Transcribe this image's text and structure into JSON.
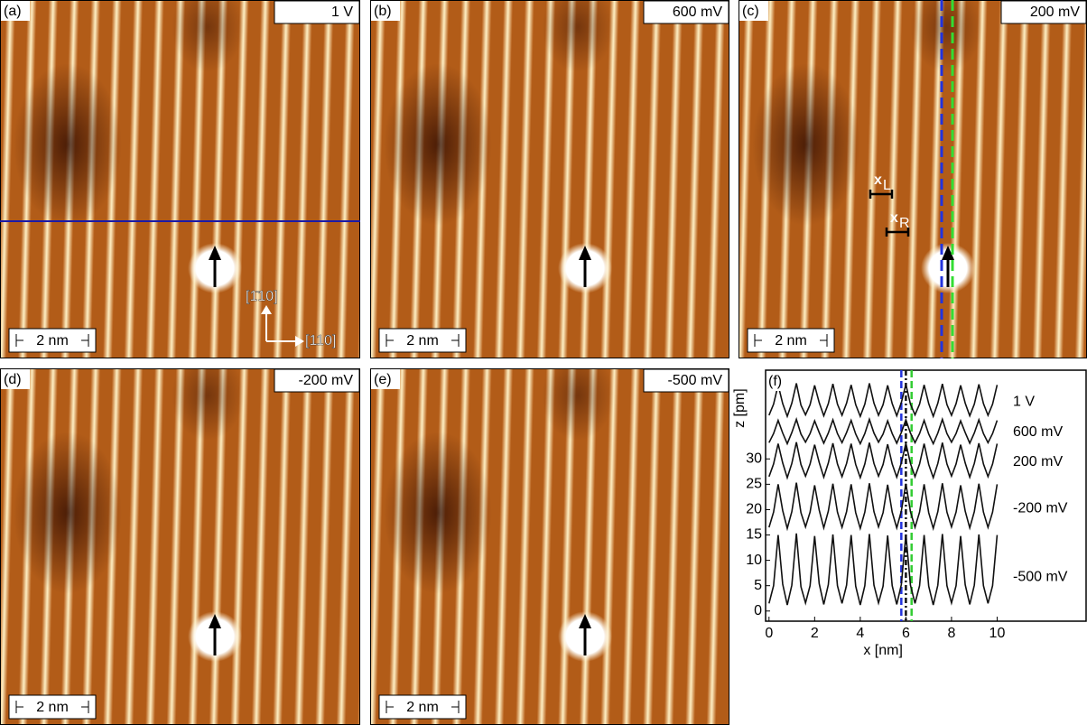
{
  "panels": [
    {
      "label": "(a)",
      "voltage": "1 V",
      "scale_bar": "2 nm"
    },
    {
      "label": "(b)",
      "voltage": "600 mV",
      "scale_bar": "2 nm"
    },
    {
      "label": "(c)",
      "voltage": "200 mV",
      "scale_bar": "2 nm"
    },
    {
      "label": "(d)",
      "voltage": "-200 mV",
      "scale_bar": "2 nm"
    },
    {
      "label": "(e)",
      "voltage": "-500 mV",
      "scale_bar": "2 nm"
    }
  ],
  "orientation": {
    "vertical": "[1̄10]",
    "horizontal": "[110]"
  },
  "markers": [
    {
      "symbol": "x",
      "subscript": "L"
    },
    {
      "symbol": "x",
      "subscript": "R"
    }
  ],
  "chart_data": {
    "type": "line",
    "panel_label": "(f)",
    "x_label": "x [nm]",
    "y_label": "z [pm]",
    "xlim": [
      -0.15,
      13.9
    ],
    "ylim": [
      -2,
      47.5
    ],
    "xticks": [
      0,
      2,
      4,
      6,
      8,
      10
    ],
    "yticks": [
      0,
      5,
      10,
      15,
      20,
      25,
      30
    ],
    "x": [
      0,
      0.2,
      0.4,
      0.6,
      0.8,
      1,
      1.2,
      1.4,
      1.6,
      1.8,
      2,
      2.2,
      2.4,
      2.6,
      2.8,
      3,
      3.2,
      3.4,
      3.6,
      3.8,
      4,
      4.2,
      4.4,
      4.6,
      4.8,
      5,
      5.2,
      5.4,
      5.6,
      5.8,
      6,
      6.2,
      6.4,
      6.6,
      6.8,
      7,
      7.2,
      7.4,
      7.6,
      7.8,
      8,
      8.2,
      8.4,
      8.6,
      8.8,
      9,
      9.2,
      9.4,
      9.6,
      9.8,
      10
    ],
    "series": [
      {
        "name": "1 V",
        "color": "#111111",
        "values": [
          38.6,
          40.8,
          44.6,
          40.9,
          38.4,
          41.0,
          44.9,
          40.6,
          38.7,
          40.7,
          44.5,
          41.1,
          38.5,
          40.9,
          44.8,
          40.8,
          38.6,
          41.0,
          44.6,
          40.7,
          38.4,
          40.8,
          44.9,
          41.0,
          38.6,
          40.7,
          44.5,
          40.9,
          38.5,
          41.1,
          44.7,
          40.8,
          38.7,
          40.8,
          44.6,
          40.9,
          38.4,
          41.0,
          44.8,
          40.7,
          38.6,
          40.9,
          44.5,
          41.0,
          38.5,
          40.8,
          44.7,
          40.9,
          38.6,
          40.8,
          44.6
        ]
      },
      {
        "name": "600 mV",
        "color": "#111111",
        "values": [
          33.2,
          35.0,
          37.6,
          35.1,
          33.0,
          35.2,
          37.8,
          34.9,
          33.3,
          35.0,
          37.5,
          35.2,
          33.1,
          35.1,
          37.7,
          35.0,
          33.2,
          35.2,
          37.6,
          34.9,
          33.0,
          35.0,
          37.8,
          35.1,
          33.3,
          34.9,
          37.5,
          35.0,
          33.1,
          35.2,
          37.7,
          35.1,
          33.2,
          35.0,
          37.6,
          34.9,
          33.0,
          35.1,
          37.8,
          35.0,
          33.3,
          35.0,
          37.5,
          35.2,
          33.1,
          35.1,
          37.7,
          35.0,
          33.2,
          35.0,
          37.6
        ]
      },
      {
        "name": "200 mV",
        "color": "#111111",
        "values": [
          26.5,
          29.0,
          33.0,
          29.2,
          26.3,
          29.1,
          33.3,
          28.9,
          26.6,
          29.0,
          32.8,
          29.3,
          26.4,
          29.2,
          33.1,
          29.0,
          26.5,
          29.1,
          33.0,
          28.9,
          26.3,
          29.0,
          33.2,
          29.1,
          26.6,
          28.9,
          32.9,
          29.0,
          26.4,
          29.2,
          33.1,
          29.1,
          26.5,
          29.0,
          33.0,
          28.9,
          26.3,
          29.1,
          33.2,
          29.0,
          26.6,
          29.0,
          32.8,
          29.2,
          26.4,
          29.1,
          33.1,
          29.0,
          26.5,
          29.0,
          33.0
        ]
      },
      {
        "name": "-200 mV",
        "color": "#111111",
        "values": [
          16.5,
          19.5,
          25.0,
          19.8,
          16.3,
          19.6,
          25.3,
          19.4,
          16.6,
          19.5,
          24.8,
          19.9,
          16.4,
          19.7,
          25.1,
          19.5,
          16.5,
          19.6,
          25.0,
          19.4,
          16.3,
          19.5,
          25.2,
          19.6,
          16.6,
          19.4,
          24.9,
          19.5,
          16.4,
          19.7,
          25.1,
          19.6,
          16.5,
          19.5,
          25.0,
          19.4,
          16.3,
          19.6,
          25.2,
          19.5,
          16.6,
          19.5,
          24.8,
          19.7,
          16.4,
          19.6,
          25.1,
          19.5,
          16.5,
          19.5,
          25.0
        ]
      },
      {
        "name": "-500 mV",
        "color": "#111111",
        "values": [
          1.5,
          5.0,
          15.0,
          5.3,
          1.2,
          5.1,
          15.3,
          4.8,
          1.6,
          5.0,
          14.8,
          5.4,
          1.3,
          5.2,
          15.1,
          5.0,
          1.5,
          5.1,
          15.0,
          4.9,
          1.2,
          5.0,
          15.2,
          5.1,
          1.6,
          4.9,
          14.9,
          5.0,
          1.3,
          5.2,
          15.1,
          5.1,
          1.5,
          5.0,
          15.0,
          4.9,
          1.2,
          5.1,
          15.2,
          5.0,
          1.6,
          5.0,
          14.8,
          5.2,
          1.3,
          5.1,
          15.1,
          5.0,
          1.5,
          5.0,
          15.0
        ]
      }
    ],
    "reference_lines": [
      {
        "x": 5.8,
        "color": "#2233dd",
        "dash": "dashed"
      },
      {
        "x": 6.0,
        "color": "#111111",
        "dash": "dashdot"
      },
      {
        "x": 6.25,
        "color": "#33cc33",
        "dash": "dashed"
      }
    ]
  }
}
